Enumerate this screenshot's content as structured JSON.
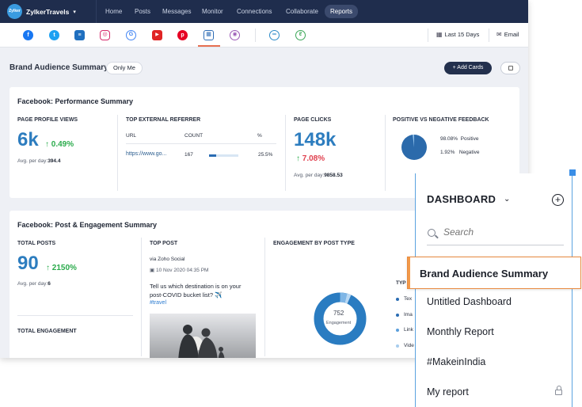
{
  "brand": {
    "name": "ZylkerTravels",
    "logo_text": "Zylker Travels"
  },
  "nav": {
    "items": [
      "Home",
      "Posts",
      "Messages",
      "Monitor",
      "Connections",
      "Collaborate",
      "Reports"
    ],
    "active": "Reports"
  },
  "networks": [
    {
      "icon": "facebook-icon",
      "glyph": "f",
      "color": "#1877f2"
    },
    {
      "icon": "twitter-icon",
      "glyph": "t",
      "color": "#1da1f2"
    },
    {
      "icon": "trello-icon",
      "glyph": "≡",
      "color": "#1f6fbf"
    },
    {
      "icon": "instagram-icon",
      "glyph": "◎",
      "color": "#d6286b"
    },
    {
      "icon": "google-icon",
      "glyph": "G",
      "color": "#4285f4"
    },
    {
      "icon": "youtube-icon",
      "glyph": "▶",
      "color": "#e02424"
    },
    {
      "icon": "pinterest-icon",
      "glyph": "p",
      "color": "#e60023"
    },
    {
      "icon": "linkedin-icon",
      "glyph": "▦",
      "color": "#2d6cb5"
    },
    {
      "icon": "mastodon-icon",
      "glyph": "◉",
      "color": "#9b59b6"
    },
    {
      "icon": "zoho-brand-icon",
      "glyph": "∞",
      "color": "#2b8ac8"
    },
    {
      "icon": "zoho-rss-icon",
      "glyph": "ℓ",
      "color": "#3aa657"
    }
  ],
  "toolbar": {
    "date_range": "Last 15 Days",
    "email": "Email"
  },
  "page": {
    "title": "Brand Audience Summary",
    "visibility": "Only Me",
    "add_cards": "+ Add Cards"
  },
  "performance": {
    "title": "Facebook: Performance Summary",
    "page_profile_views": {
      "label": "PAGE PROFILE VIEWS",
      "value": "6k",
      "change": "0.49%",
      "avg_label": "Avg. per day:",
      "avg_value": "394.4"
    },
    "top_external_referrer": {
      "label": "TOP EXTERNAL REFERRER",
      "headers": [
        "URL",
        "COUNT",
        "%"
      ],
      "rows": [
        {
          "url": "https://www.go...",
          "count": "167",
          "percent": "25.5%",
          "share": 0.255
        }
      ]
    },
    "page_clicks": {
      "label": "PAGE CLICKS",
      "value": "148k",
      "change": "7.08%",
      "avg_label": "Avg. per day:",
      "avg_value": "9858.53"
    },
    "feedback": {
      "label": "POSITIVE VS NEGATIVE FEEDBACK",
      "positive_pct": "98.08%",
      "positive_label": "Positive",
      "negative_pct": "1.92%",
      "negative_label": "Negative",
      "positive": 98.08,
      "negative": 1.92
    }
  },
  "engagement": {
    "title": "Facebook: Post & Engagement Summary",
    "total_posts": {
      "label": "TOTAL POSTS",
      "value": "90",
      "change": "2150%",
      "avg_label": "Avg. per day:",
      "avg_value": "6"
    },
    "total_engagement_label": "TOTAL ENGAGEMENT",
    "top_post": {
      "label": "TOP POST",
      "via": "via Zoho Social",
      "date": "10 Nov 2020 04:35 PM",
      "text": "Tell us which destination is on your post-COVID bucket list? ✈️",
      "hashtag": "#travel"
    },
    "by_post_type": {
      "label": "ENGAGEMENT BY POST TYPE",
      "total": "752",
      "total_label": "Engagement",
      "legend_header": "TYP",
      "legend": [
        "Tex",
        "Ima",
        "Link",
        "Vide"
      ]
    }
  },
  "dashboard": {
    "title": "DASHBOARD",
    "search_placeholder": "Search",
    "items": [
      "Brand Audience Summary",
      "Untitled Dashboard",
      "Monthly Report",
      "#MakeinIndia",
      "My report"
    ],
    "active": "Brand Audience Summary"
  },
  "colors": {
    "nav_bg": "#1f2d4d",
    "accent_blue": "#2d7dbf",
    "positive_green": "#2bab4c",
    "negative_red": "#e0414f",
    "active_orange": "#e88a3f"
  }
}
